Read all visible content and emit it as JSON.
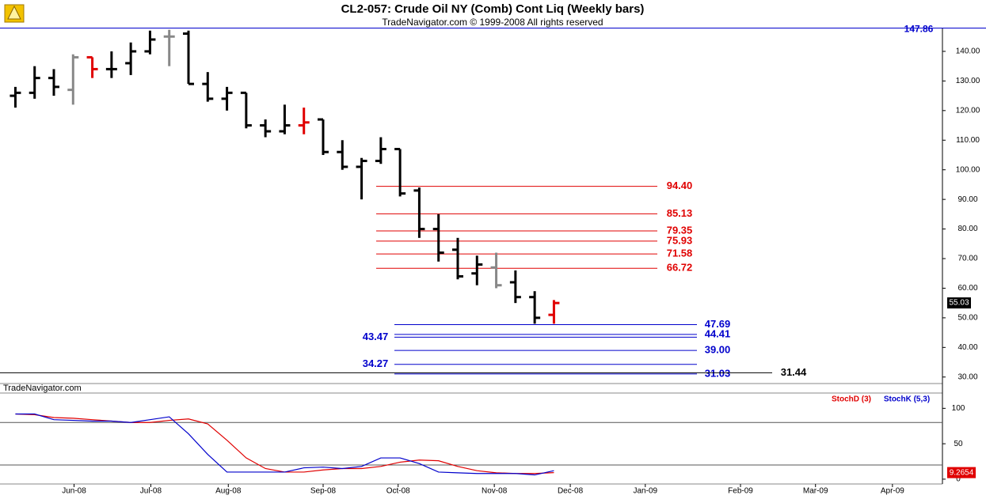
{
  "chart_data": [
    {
      "type": "ohlc",
      "title": "CL2-057:  Crude Oil NY (Comb) Cont Liq  (Weekly bars)",
      "subtitle": "TradeNavigator.com © 1999-2008 All rights reserved",
      "watermark": "TradeNavigator.com",
      "xlim": [
        -0.8,
        48.2
      ],
      "ylim": [
        27.8,
        148
      ],
      "yticks": [
        {
          "value": 30,
          "label": "30.00"
        },
        {
          "value": 40,
          "label": "40.00"
        },
        {
          "value": 50,
          "label": "50.00"
        },
        {
          "value": 60,
          "label": "60.00"
        },
        {
          "value": 70,
          "label": "70.00"
        },
        {
          "value": 80,
          "label": "80.00"
        },
        {
          "value": 90,
          "label": "90.00"
        },
        {
          "value": 100,
          "label": "100.00"
        },
        {
          "value": 110,
          "label": "110.00"
        },
        {
          "value": 120,
          "label": "120.00"
        },
        {
          "value": 130,
          "label": "130.00"
        },
        {
          "value": 140,
          "label": "140.00"
        }
      ],
      "open": [
        125,
        126,
        131,
        127,
        138,
        134,
        136,
        140,
        145,
        146,
        129,
        124,
        126,
        115,
        113,
        115,
        117,
        106,
        101,
        103,
        107,
        93,
        80,
        73,
        65,
        67,
        62,
        57,
        51
      ],
      "high": [
        128,
        135,
        134,
        139,
        138,
        140,
        143,
        147,
        147.3,
        147,
        133,
        128,
        126,
        117,
        122,
        121,
        117,
        110,
        104,
        111,
        107,
        94,
        85,
        77,
        71,
        72,
        66,
        59,
        56
      ],
      "low": [
        121,
        124,
        125,
        122,
        131,
        131,
        132,
        139,
        135,
        129,
        123,
        120,
        114,
        111,
        112,
        112,
        105,
        100,
        90,
        102,
        91,
        77,
        69,
        63,
        61,
        60,
        55,
        48,
        48
      ],
      "close": [
        126,
        131,
        128,
        138,
        134,
        134,
        140,
        144,
        145,
        129,
        124,
        126,
        115,
        113,
        115,
        116,
        106,
        101,
        103,
        107,
        92,
        80,
        72,
        64,
        68,
        61,
        57,
        50,
        55
      ],
      "colors": [
        "#000",
        "#000",
        "#000",
        "#888",
        "#e00000",
        "#000",
        "#000",
        "#000",
        "#888",
        "#000",
        "#000",
        "#000",
        "#000",
        "#000",
        "#000",
        "#e00000",
        "#000",
        "#000",
        "#000",
        "#000",
        "#000",
        "#000",
        "#000",
        "#000",
        "#000",
        "#888",
        "#000",
        "#000",
        "#e00000"
      ],
      "levels": [
        {
          "value": 94.4,
          "label": "94.40",
          "color": "#e00000",
          "label_side": "right"
        },
        {
          "value": 85.13,
          "label": "85.13",
          "color": "#e00000",
          "label_side": "right"
        },
        {
          "value": 79.35,
          "label": "79.35",
          "color": "#e00000",
          "label_side": "right"
        },
        {
          "value": 75.93,
          "label": "75.93",
          "color": "#e00000",
          "label_side": "right"
        },
        {
          "value": 71.58,
          "label": "71.58",
          "color": "#e00000",
          "label_side": "right"
        },
        {
          "value": 66.72,
          "label": "66.72",
          "color": "#e00000",
          "label_side": "right"
        },
        {
          "value": 47.69,
          "label": "47.69",
          "color": "#0000cc",
          "label_side": "right"
        },
        {
          "value": 44.41,
          "label": "44.41",
          "color": "#0000cc",
          "label_side": "right"
        },
        {
          "value": 43.47,
          "label": "43.47",
          "color": "#0000cc",
          "label_side": "left"
        },
        {
          "value": 39,
          "label": "39.00",
          "color": "#0000cc",
          "label_side": "right"
        },
        {
          "value": 34.27,
          "label": "34.27",
          "color": "#0000cc",
          "label_side": "left"
        },
        {
          "value": 31.03,
          "label": "31.03",
          "color": "#0000cc",
          "label_side": "right"
        },
        {
          "value": 31.44,
          "label": "31.44",
          "color": "#000000",
          "label_side": "right"
        }
      ],
      "last_price": {
        "value": 55.03,
        "label": "55.03"
      },
      "high_marker": {
        "value": 147.86,
        "label": "147.86"
      }
    },
    {
      "type": "line",
      "xlim": [
        -0.8,
        48.2
      ],
      "ylim": [
        -6.8,
        121.6
      ],
      "yticks": [
        0,
        50,
        100
      ],
      "bands": [
        20,
        80
      ],
      "xticks": [
        {
          "value": 3.05,
          "label": "Jun-08"
        },
        {
          "value": 7.04,
          "label": "Jul-08"
        },
        {
          "value": 11.07,
          "label": "Aug-08"
        },
        {
          "value": 16.0,
          "label": "Sep-08"
        },
        {
          "value": 19.9,
          "label": "Oct-08"
        },
        {
          "value": 24.9,
          "label": "Nov-08"
        },
        {
          "value": 28.85,
          "label": "Dec-08"
        },
        {
          "value": 32.75,
          "label": "Jan-09"
        },
        {
          "value": 37.7,
          "label": "Feb-09"
        },
        {
          "value": 41.6,
          "label": "Mar-09"
        },
        {
          "value": 45.6,
          "label": "Apr-09"
        }
      ],
      "series": [
        {
          "name": "StochD (3)",
          "color": "#e00000",
          "values": [
            92,
            91,
            87,
            86,
            84,
            82,
            80,
            80,
            83,
            85,
            78,
            55,
            30,
            15,
            10,
            10,
            13,
            15,
            15,
            18,
            24,
            27,
            26,
            18,
            12,
            9,
            8,
            8,
            9.2654
          ]
        },
        {
          "name": "StochK (5,3)",
          "color": "#0000cc",
          "values": [
            92,
            92,
            84,
            83,
            82,
            82,
            80,
            84,
            88,
            64,
            35,
            10,
            10,
            10,
            10,
            16,
            17,
            15,
            18,
            30,
            30,
            22,
            10,
            9,
            8,
            8,
            8,
            6,
            12
          ]
        }
      ]
    }
  ]
}
